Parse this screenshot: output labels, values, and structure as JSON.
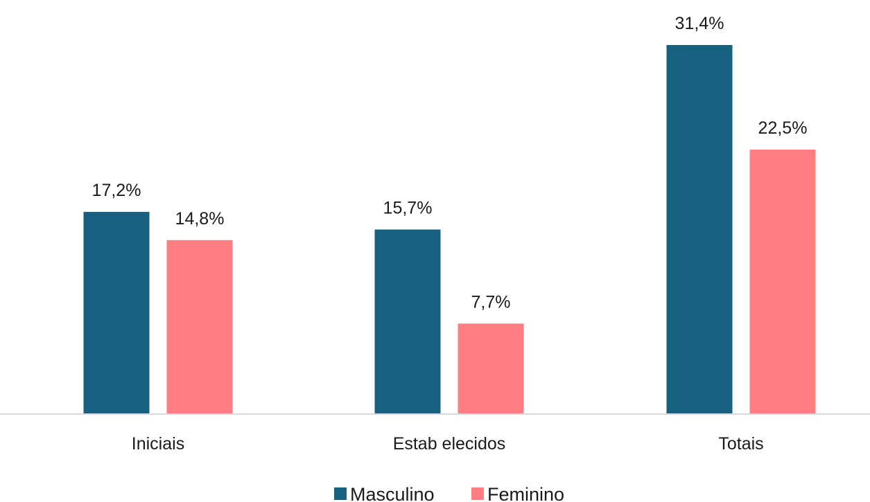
{
  "chart_data": {
    "type": "bar",
    "categories": [
      "Iniciais",
      "Estab elecidos",
      "Totais"
    ],
    "series": [
      {
        "name": "Masculino",
        "color": "#17607f",
        "values": [
          17.2,
          15.7,
          31.4
        ],
        "labels": [
          "17,2%",
          "15,7%",
          "31,4%"
        ]
      },
      {
        "name": "Feminino",
        "color": "#ff7e82",
        "values": [
          14.8,
          7.7,
          22.5
        ],
        "labels": [
          "14,8%",
          "7,7%",
          "22,5%"
        ]
      }
    ],
    "ylim": [
      0,
      31.4
    ],
    "grid": false,
    "legend_position": "bottom",
    "axis_color": "#d9d9d9"
  }
}
